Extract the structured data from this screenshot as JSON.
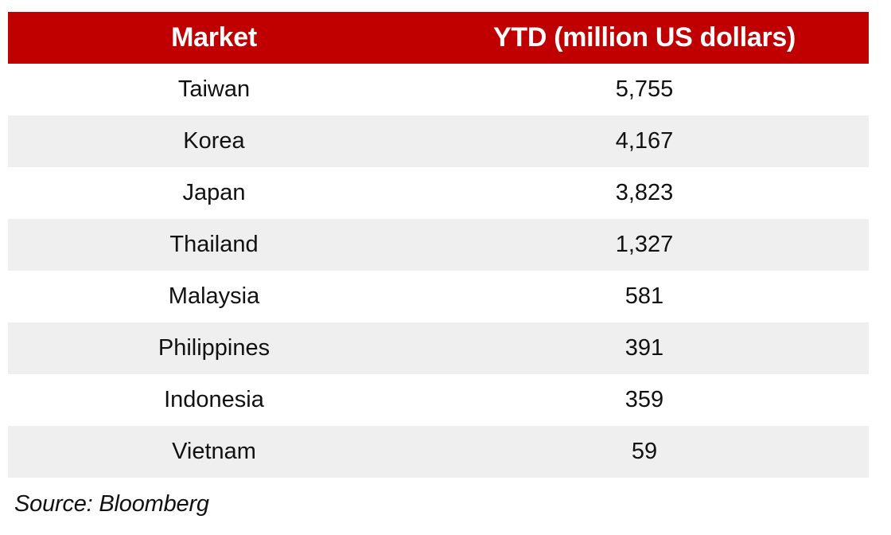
{
  "chart_data": {
    "type": "table",
    "columns": [
      "Market",
      "YTD (million US dollars)"
    ],
    "rows": [
      {
        "market": "Taiwan",
        "ytd": "5,755"
      },
      {
        "market": "Korea",
        "ytd": "4,167"
      },
      {
        "market": "Japan",
        "ytd": "3,823"
      },
      {
        "market": "Thailand",
        "ytd": "1,327"
      },
      {
        "market": "Malaysia",
        "ytd": "581"
      },
      {
        "market": "Philippines",
        "ytd": "391"
      },
      {
        "market": "Indonesia",
        "ytd": "359"
      },
      {
        "market": "Vietnam",
        "ytd": "59"
      }
    ],
    "header_color": "#c00000",
    "stripe_color": "#efefef"
  },
  "footer": {
    "source": "Source: Bloomberg"
  }
}
